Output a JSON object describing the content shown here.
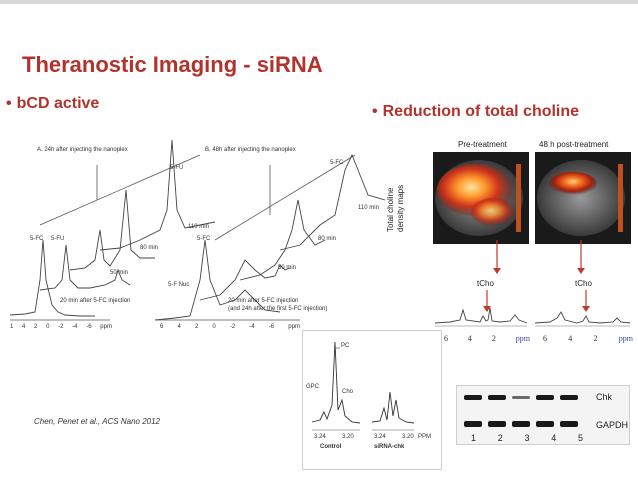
{
  "slide": {
    "title": "Theranostic Imaging - siRNA",
    "left_bullet": "bCD active",
    "right_bullet": "Reduction of total choline",
    "bullet_symbol": "•",
    "citation": "Chen, Penet et al., ACS Nano 2012"
  },
  "nmr_panel": {
    "panel_a_title": "A. 24h after injecting the nanoplex",
    "panel_b_title": "B. 48h after injecting the nanoplex",
    "a_labels": [
      "5-FC",
      "5-FU",
      "5-FU",
      "80 min",
      "50 min",
      "20 min after 5-FC injection"
    ],
    "a_axis": [
      "4",
      "2",
      "0",
      "-2",
      "-4",
      "-6",
      "ppm"
    ],
    "a_axis_extra": "1",
    "a_label_110": "110 min",
    "b_labels": [
      "5-FC",
      "110 min",
      "5-FC",
      "80 min",
      "50 min",
      "5-F Nuc",
      "20 min after 5-FC injection",
      "(and 24h after the first 5-FC injection)"
    ],
    "b_axis": [
      "6",
      "4",
      "2",
      "0",
      "-2",
      "-4",
      "-6",
      "ppm"
    ]
  },
  "maps": {
    "side_label_1": "Total choline",
    "side_label_2": "density maps",
    "pre_label": "Pre-treatment",
    "post_label": "48 h post-treatment"
  },
  "spectra": {
    "peak_label": "tCho",
    "axis_left": [
      "6",
      "4",
      "2",
      "ppm"
    ],
    "axis_right": [
      "6",
      "4",
      "2",
      "ppm"
    ]
  },
  "pc_panel": {
    "pc": "PC",
    "gpc": "GPC",
    "cho": "Cho",
    "ticks_left": [
      "3.24",
      "3.20"
    ],
    "ticks_right": [
      "3.24",
      "3.20"
    ],
    "ppm": "PPM",
    "control": "Control",
    "sirna": "siRNA-chk"
  },
  "blot": {
    "chk": "Chk",
    "gapdh": "GAPDH",
    "lanes": [
      "1",
      "2",
      "3",
      "4",
      "5"
    ]
  },
  "colors": {
    "title": "#b3322b",
    "arrow": "#c0392b"
  }
}
